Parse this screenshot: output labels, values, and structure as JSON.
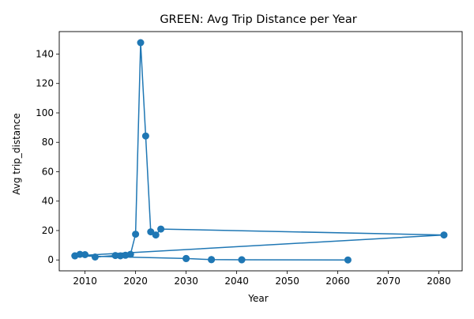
{
  "chart_data": {
    "type": "line",
    "title": "GREEN: Avg Trip Distance per Year",
    "xlabel": "Year",
    "ylabel": "Avg trip_distance",
    "xlim": [
      2004.9,
      2084.6
    ],
    "ylim": [
      -7.4,
      155.3
    ],
    "xticks": [
      2010,
      2020,
      2030,
      2040,
      2050,
      2060,
      2070,
      2080
    ],
    "yticks": [
      0,
      20,
      40,
      60,
      80,
      100,
      120,
      140
    ],
    "grid": false,
    "legend": "none",
    "series": [
      {
        "color": "#1f77b4",
        "marker": "circle",
        "x": [
          2008,
          2009,
          2010,
          2012,
          2016,
          2017,
          2018,
          2019,
          2020,
          2021,
          2022,
          2023,
          2024,
          2025,
          2081,
          2008,
          2030,
          2035,
          2041,
          2062,
          2041,
          2035,
          2030
        ],
        "y": [
          2.8,
          3.8,
          3.6,
          2.0,
          3.0,
          2.8,
          3.2,
          3.8,
          17.5,
          147.8,
          84.3,
          19.1,
          17.0,
          21.0,
          17.0,
          2.8,
          1.0,
          0.2,
          0.1,
          0.0,
          0.1,
          0.2,
          1.0
        ]
      }
    ]
  }
}
